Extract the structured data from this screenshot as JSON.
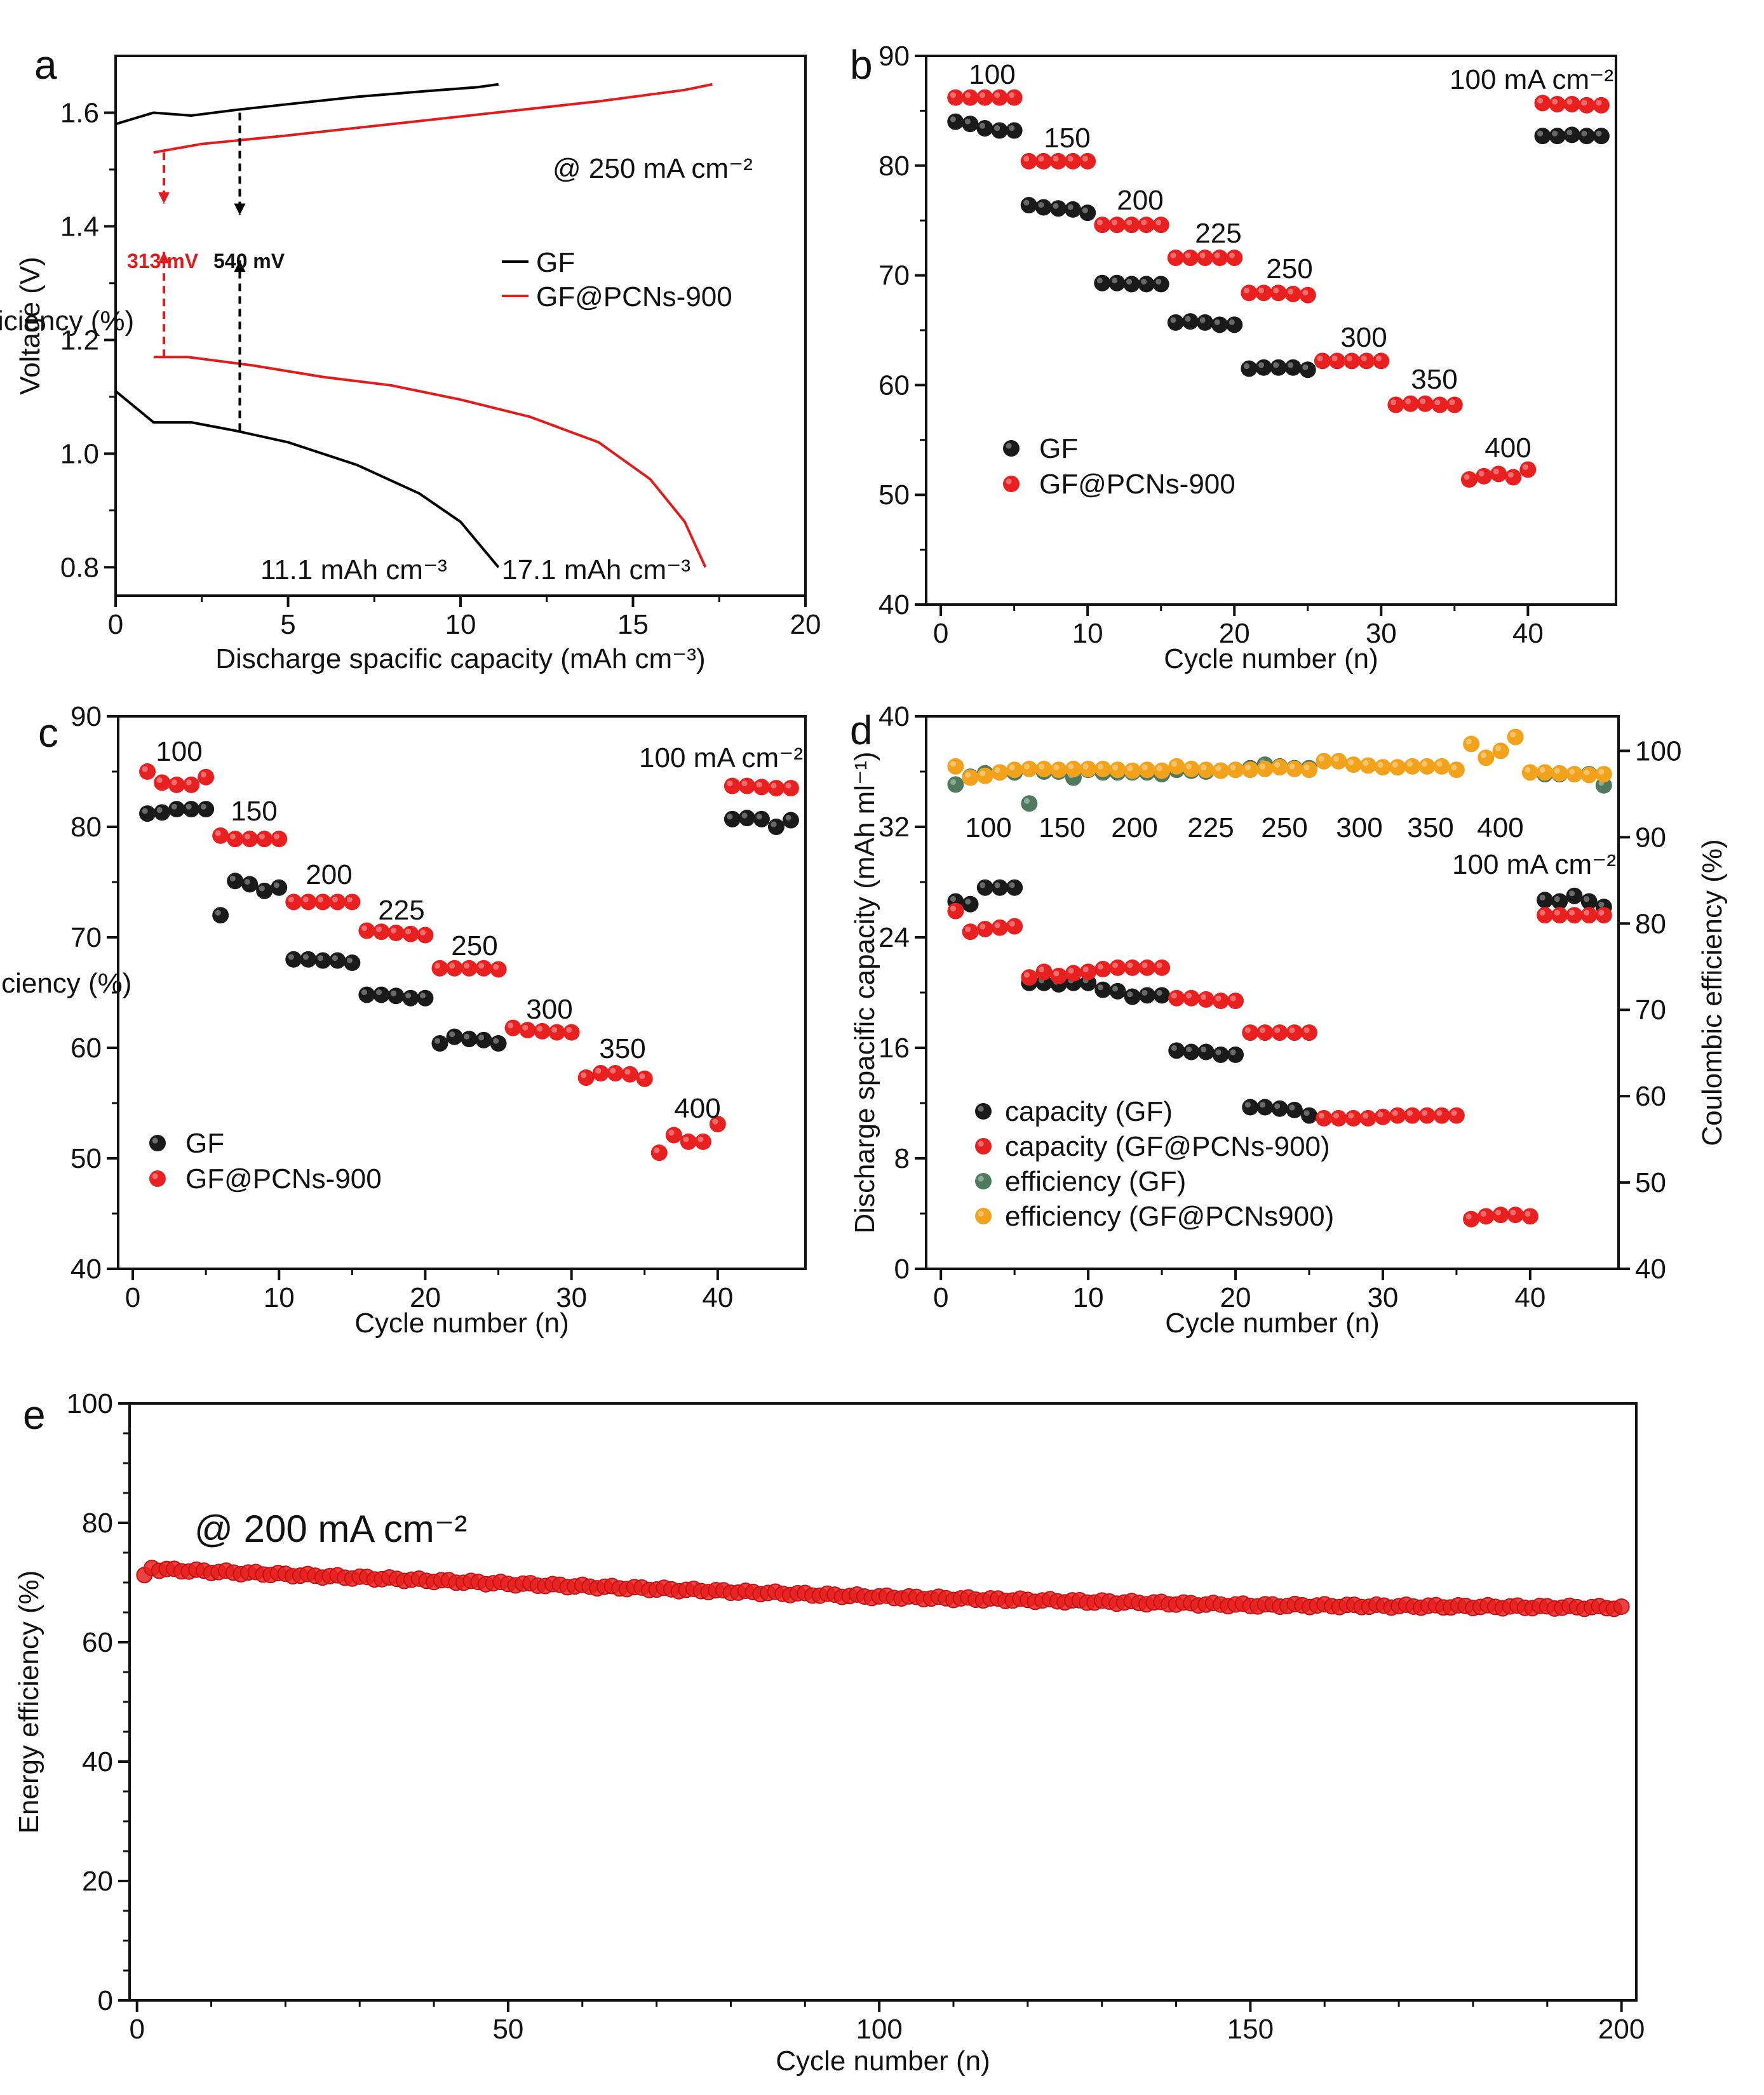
{
  "colors": {
    "black_series": "#1a1a1a",
    "red_series": "#e8201f",
    "green_series": "#4f7a5e",
    "orange_series": "#f2a31b",
    "line_gf": "#000000",
    "line_pcn": "#e21b1b"
  },
  "chart_data": [
    {
      "panel": "a",
      "type": "line",
      "xlabel": "Discharge spacific capacity (mAh cm⁻³)",
      "ylabel": "Voltage (V)",
      "xlim": [
        0,
        20
      ],
      "ylim": [
        0.75,
        1.7
      ],
      "xticks": [
        0,
        5,
        10,
        15,
        20
      ],
      "yticks": [
        0.8,
        1.0,
        1.2,
        1.4,
        1.6
      ],
      "legend": [
        "GF",
        "GF@PCNs-900"
      ],
      "annotations": {
        "current": "@ 250 mA cm⁻²",
        "gap_red": "313 mV",
        "gap_black": "540 mV",
        "cap_gf": "11.1 mAh cm⁻³",
        "cap_pcn": "17.1 mAh cm⁻³"
      },
      "series": [
        {
          "name": "GF charge",
          "x": [
            0,
            1.1,
            2.2,
            3.5,
            5,
            7,
            9,
            10.5,
            11.1
          ],
          "y": [
            1.58,
            1.6,
            1.595,
            1.605,
            1.615,
            1.628,
            1.638,
            1.645,
            1.65
          ]
        },
        {
          "name": "GF discharge",
          "x": [
            0,
            1.1,
            2.2,
            3.5,
            5,
            7,
            8.8,
            10,
            11.1
          ],
          "y": [
            1.11,
            1.055,
            1.055,
            1.04,
            1.02,
            0.98,
            0.93,
            0.88,
            0.8
          ]
        },
        {
          "name": "GF@PCNs-900 charge",
          "x": [
            1.1,
            2.5,
            5,
            8,
            11,
            14,
            16.5,
            17.3
          ],
          "y": [
            1.53,
            1.545,
            1.56,
            1.58,
            1.6,
            1.62,
            1.64,
            1.65
          ]
        },
        {
          "name": "GF@PCNs-900 discharge",
          "x": [
            1.1,
            2.1,
            4,
            6,
            8,
            10,
            12,
            14,
            15.5,
            16.5,
            17.1
          ],
          "y": [
            1.17,
            1.17,
            1.155,
            1.135,
            1.12,
            1.095,
            1.065,
            1.02,
            0.955,
            0.88,
            0.8
          ]
        }
      ]
    },
    {
      "panel": "b",
      "type": "scatter",
      "xlabel": "Cycle number (n)",
      "ylabel": "Voltage efficiency (%)",
      "xlim": [
        -1,
        46
      ],
      "ylim": [
        40,
        90
      ],
      "xticks": [
        0,
        10,
        20,
        30,
        40
      ],
      "yticks": [
        40,
        50,
        60,
        70,
        80,
        90
      ],
      "legend": [
        "GF",
        "GF@PCNs-900"
      ],
      "current_label": "100 mA cm⁻²",
      "rate_labels": [
        "100",
        "150",
        "200",
        "225",
        "250",
        "300",
        "350",
        "400"
      ],
      "series": [
        {
          "name": "GF",
          "x": [
            1,
            2,
            3,
            4,
            5,
            6,
            7,
            8,
            9,
            10,
            11,
            12,
            13,
            14,
            15,
            16,
            17,
            18,
            19,
            20,
            21,
            22,
            23,
            24,
            25,
            41,
            42,
            43,
            44,
            45
          ],
          "y": [
            84,
            83.8,
            83.4,
            83.2,
            83.2,
            76.4,
            76.2,
            76.1,
            76,
            75.7,
            69.3,
            69.3,
            69.2,
            69.2,
            69.2,
            65.7,
            65.8,
            65.7,
            65.5,
            65.5,
            61.5,
            61.6,
            61.6,
            61.6,
            61.4,
            82.7,
            82.7,
            82.8,
            82.7,
            82.7
          ]
        },
        {
          "name": "GF@PCNs-900",
          "x": [
            1,
            2,
            3,
            4,
            5,
            6,
            7,
            8,
            9,
            10,
            11,
            12,
            13,
            14,
            15,
            16,
            17,
            18,
            19,
            20,
            21,
            22,
            23,
            24,
            25,
            26,
            27,
            28,
            29,
            30,
            31,
            32,
            33,
            34,
            35,
            36,
            37,
            38,
            39,
            40,
            41,
            42,
            43,
            44,
            45
          ],
          "y": [
            86.2,
            86.2,
            86.2,
            86.2,
            86.2,
            80.4,
            80.4,
            80.4,
            80.4,
            80.4,
            74.6,
            74.6,
            74.6,
            74.6,
            74.6,
            71.6,
            71.6,
            71.6,
            71.6,
            71.6,
            68.4,
            68.4,
            68.4,
            68.3,
            68.2,
            62.2,
            62.2,
            62.2,
            62.2,
            62.2,
            58.2,
            58.3,
            58.3,
            58.2,
            58.2,
            51.4,
            51.7,
            51.9,
            51.6,
            52.3,
            85.7,
            85.6,
            85.6,
            85.5,
            85.5
          ]
        }
      ]
    },
    {
      "panel": "c",
      "type": "scatter",
      "xlabel": "Cycle number (n)",
      "ylabel": "Energy efficiency (%)",
      "xlim": [
        -1,
        46
      ],
      "ylim": [
        40,
        90
      ],
      "xticks": [
        0,
        10,
        20,
        30,
        40
      ],
      "yticks": [
        40,
        50,
        60,
        70,
        80,
        90
      ],
      "legend": [
        "GF",
        "GF@PCNs-900"
      ],
      "current_label": "100 mA cm⁻²",
      "rate_labels": [
        "100",
        "150",
        "200",
        "225",
        "250",
        "300",
        "350",
        "400"
      ],
      "series": [
        {
          "name": "GF",
          "x": [
            1,
            2,
            3,
            4,
            5,
            6,
            7,
            8,
            9,
            10,
            11,
            12,
            13,
            14,
            15,
            16,
            17,
            18,
            19,
            20,
            21,
            22,
            23,
            24,
            25,
            41,
            42,
            43,
            44,
            45
          ],
          "y": [
            81.2,
            81.3,
            81.6,
            81.6,
            81.6,
            72,
            75.1,
            74.8,
            74.2,
            74.5,
            68,
            68,
            67.9,
            67.9,
            67.7,
            64.8,
            64.8,
            64.7,
            64.5,
            64.5,
            60.4,
            61,
            60.8,
            60.7,
            60.4,
            80.7,
            80.8,
            80.7,
            80,
            80.6
          ]
        },
        {
          "name": "GF@PCNs-900",
          "x": [
            1,
            2,
            3,
            4,
            5,
            6,
            7,
            8,
            9,
            10,
            11,
            12,
            13,
            14,
            15,
            16,
            17,
            18,
            19,
            20,
            21,
            22,
            23,
            24,
            25,
            26,
            27,
            28,
            29,
            30,
            31,
            32,
            33,
            34,
            35,
            36,
            37,
            38,
            39,
            40,
            41,
            42,
            43,
            44,
            45
          ],
          "y": [
            85,
            84,
            83.8,
            83.8,
            84.5,
            79.2,
            78.9,
            78.9,
            78.9,
            78.9,
            73.2,
            73.2,
            73.2,
            73.2,
            73.2,
            70.6,
            70.5,
            70.4,
            70.3,
            70.2,
            67.2,
            67.2,
            67.2,
            67.2,
            67.1,
            61.8,
            61.6,
            61.5,
            61.4,
            61.4,
            57.3,
            57.7,
            57.7,
            57.6,
            57.2,
            50.5,
            52.1,
            51.5,
            51.5,
            53.1,
            83.7,
            83.7,
            83.6,
            83.5,
            83.5
          ]
        }
      ]
    },
    {
      "panel": "d",
      "type": "scatter",
      "xlabel": "Cycle number (n)",
      "ylabel": "Discharge spacific capacity (mAh ml⁻¹)",
      "ylabel_right": "Coulombic efficiency (%)",
      "xlim": [
        -1,
        46
      ],
      "ylim": [
        0,
        40
      ],
      "ylim_right": [
        40,
        104
      ],
      "xticks": [
        0,
        10,
        20,
        30,
        40
      ],
      "yticks": [
        0,
        8,
        16,
        24,
        32,
        40
      ],
      "yticks_right": [
        40,
        50,
        60,
        70,
        80,
        90,
        100
      ],
      "legend": [
        "capacity (GF)",
        "capacity (GF@PCNs-900)",
        "efficiency (GF)",
        "efficiency (GF@PCNs900)"
      ],
      "current_label": "100 mA cm⁻²",
      "rate_labels": [
        "100",
        "150",
        "200",
        "225",
        "250",
        "300",
        "350",
        "400"
      ],
      "series": [
        {
          "name": "capacity (GF)",
          "axis": "left",
          "x": [
            1,
            2,
            3,
            4,
            5,
            6,
            7,
            8,
            9,
            10,
            11,
            12,
            13,
            14,
            15,
            16,
            17,
            18,
            19,
            20,
            21,
            22,
            23,
            24,
            25,
            41,
            42,
            43,
            44,
            45
          ],
          "y": [
            26.6,
            26.4,
            27.6,
            27.6,
            27.6,
            20.7,
            20.7,
            20.6,
            20.7,
            20.7,
            20.2,
            20.1,
            19.7,
            19.8,
            19.8,
            15.8,
            15.7,
            15.7,
            15.5,
            15.5,
            11.7,
            11.7,
            11.6,
            11.5,
            11.1,
            26.7,
            26.6,
            27,
            26.6,
            26.2
          ]
        },
        {
          "name": "capacity (GF@PCNs-900)",
          "axis": "left",
          "x": [
            1,
            2,
            3,
            4,
            5,
            6,
            7,
            8,
            9,
            10,
            11,
            12,
            13,
            14,
            15,
            16,
            17,
            18,
            19,
            20,
            21,
            22,
            23,
            24,
            25,
            26,
            27,
            28,
            29,
            30,
            31,
            32,
            33,
            34,
            35,
            36,
            37,
            38,
            39,
            40,
            41,
            42,
            43,
            44,
            45
          ],
          "y": [
            25.9,
            24.4,
            24.6,
            24.7,
            24.8,
            21.1,
            21.5,
            21.2,
            21.4,
            21.5,
            21.7,
            21.8,
            21.8,
            21.8,
            21.8,
            19.6,
            19.6,
            19.5,
            19.4,
            19.4,
            17.1,
            17.1,
            17.1,
            17.1,
            17.1,
            10.9,
            10.9,
            10.9,
            10.9,
            11,
            11.1,
            11.1,
            11.1,
            11.1,
            11.1,
            3.6,
            3.8,
            3.9,
            3.9,
            3.8,
            25.6,
            25.6,
            25.6,
            25.6,
            25.6
          ]
        },
        {
          "name": "efficiency (GF)",
          "axis": "right",
          "x": [
            1,
            2,
            3,
            4,
            5,
            6,
            7,
            8,
            9,
            10,
            11,
            12,
            13,
            14,
            15,
            16,
            17,
            18,
            19,
            20,
            21,
            22,
            23,
            24,
            25,
            41,
            42,
            43,
            44,
            45
          ],
          "y": [
            96.1,
            97,
            97.4,
            97.5,
            97.5,
            93.9,
            97.6,
            97.6,
            96.9,
            97.8,
            97.5,
            97.5,
            97.5,
            97.5,
            97.3,
            97.8,
            97.7,
            97.6,
            97.7,
            97.8,
            98.0,
            98.4,
            98.2,
            98.0,
            98.0,
            97.3,
            97.3,
            97.3,
            97.3,
            96.0
          ]
        },
        {
          "name": "efficiency (GF@PCNs900)",
          "axis": "right",
          "x": [
            1,
            2,
            3,
            4,
            5,
            6,
            7,
            8,
            9,
            10,
            11,
            12,
            13,
            14,
            15,
            16,
            17,
            18,
            19,
            20,
            21,
            22,
            23,
            24,
            25,
            26,
            27,
            28,
            29,
            30,
            31,
            32,
            33,
            34,
            35,
            36,
            37,
            38,
            39,
            40,
            41,
            42,
            43,
            44,
            45
          ],
          "y": [
            98.2,
            96.9,
            97.1,
            97.5,
            97.8,
            97.9,
            97.9,
            97.8,
            97.9,
            97.9,
            97.9,
            97.8,
            97.7,
            97.8,
            97.7,
            98.2,
            97.9,
            97.8,
            97.7,
            97.8,
            97.8,
            97.9,
            98.1,
            97.9,
            97.8,
            98.8,
            98.8,
            98.4,
            98.3,
            98.1,
            98.1,
            98.2,
            98.2,
            98.2,
            97.8,
            100.8,
            99.2,
            100,
            101.6,
            97.5,
            97.5,
            97.4,
            97.3,
            97.2,
            97.3
          ]
        }
      ]
    },
    {
      "panel": "e",
      "type": "scatter",
      "xlabel": "Cycle number (n)",
      "ylabel": "Energy efficiency (%)",
      "xlim": [
        -1,
        202
      ],
      "ylim": [
        0,
        100
      ],
      "xticks": [
        0,
        50,
        100,
        150,
        200
      ],
      "yticks": [
        0,
        20,
        40,
        60,
        80,
        100
      ],
      "annotation": "@ 200 mA cm⁻²",
      "series": [
        {
          "name": "GF@PCNs-900",
          "trend": {
            "x": [
              1,
              2,
              3,
              50,
              100,
              150,
              200
            ],
            "y": [
              71,
              72.5,
              72.2,
              69.8,
              67.6,
              66.2,
              65.8
            ]
          }
        }
      ]
    }
  ],
  "panel_labels": [
    "a",
    "b",
    "c",
    "d",
    "e"
  ]
}
